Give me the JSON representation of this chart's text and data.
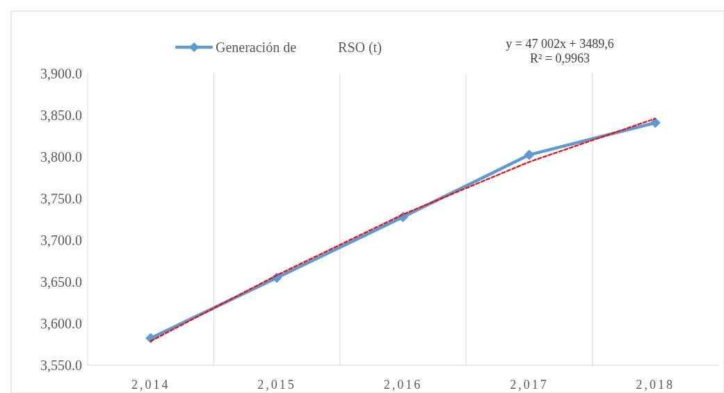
{
  "chart_data": {
    "type": "line",
    "categories": [
      "2,014",
      "2,015",
      "2,016",
      "2,017",
      "2,018"
    ],
    "series": [
      {
        "name": "Generación de            RSO (t)",
        "color": "#5b9bd5",
        "values": [
          3582.5,
          3655,
          3728,
          3802.5,
          3841
        ],
        "marker": "diamond",
        "line_style": "solid"
      },
      {
        "type": "line",
        "color": "#ff0000",
        "values": [
          3579,
          3658,
          3731,
          3794,
          3846
        ],
        "marker": "none",
        "line_style": "dashed"
      }
    ],
    "ylim": [
      3550,
      3900
    ],
    "yticks": [
      {
        "value": 3550,
        "label": "3,550.0"
      },
      {
        "value": 3600,
        "label": "3,600.0"
      },
      {
        "value": 3650,
        "label": "3,650.0"
      },
      {
        "value": 3700,
        "label": "3,700.0"
      },
      {
        "value": 3750,
        "label": "3,750.0"
      },
      {
        "value": 3800,
        "label": "3,800.0"
      },
      {
        "value": 3850,
        "label": "3,850.0"
      },
      {
        "value": 3900,
        "label": "3,900.0"
      }
    ],
    "grid": "x",
    "legend": "top",
    "annotations": [
      "y = 47 002x + 3489,6",
      "R² = 0,9963"
    ]
  }
}
